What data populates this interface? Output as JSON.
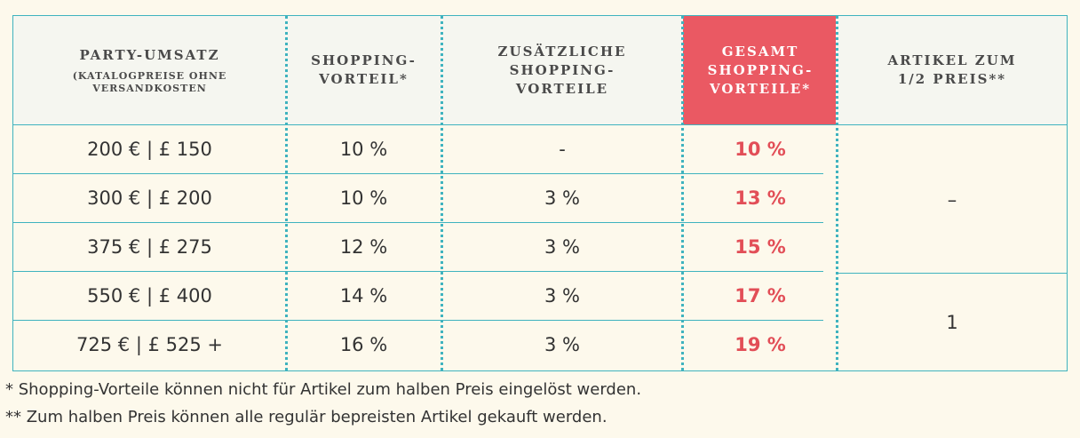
{
  "headers": {
    "col1_title": "PARTY-UMSATZ",
    "col1_sub_line1": "(KATALOGPREISE OHNE",
    "col1_sub_line2": "VERSANDKOSTEN",
    "col2_line1": "SHOPPING-",
    "col2_line2": "VORTEIL*",
    "col3_line1": "ZUSÄTZLICHE",
    "col3_line2": "SHOPPING-",
    "col3_line3": "VORTEILE",
    "col4_line1": "GESAMT",
    "col4_line2": "SHOPPING-",
    "col4_line3": "VORTEILE*",
    "col5_line1": "ARTIKEL ZUM",
    "col5_line2": "1/2 PREIS**"
  },
  "rows": [
    {
      "umsatz": "200 € | £ 150",
      "vorteil": "10 %",
      "zusaetzlich": "-",
      "gesamt": "10 %"
    },
    {
      "umsatz": "300 € | £ 200",
      "vorteil": "10 %",
      "zusaetzlich": "3 %",
      "gesamt": "13 %"
    },
    {
      "umsatz": "375 € | £ 275",
      "vorteil": "12 %",
      "zusaetzlich": "3 %",
      "gesamt": "15 %"
    },
    {
      "umsatz": "550 € | £ 400",
      "vorteil": "14 %",
      "zusaetzlich": "3 %",
      "gesamt": "17 %"
    },
    {
      "umsatz": "725 € | £ 525 +",
      "vorteil": "16 %",
      "zusaetzlich": "3 %",
      "gesamt": "19 %"
    }
  ],
  "half_price": {
    "group1": "–",
    "group2": "1"
  },
  "footnotes": {
    "note1": "* Shopping-Vorteile können nicht für Artikel zum halben Preis eingelöst werden.",
    "note2": "** Zum halben Preis können alle regulär bepreisten Artikel gekauft werden."
  },
  "colors": {
    "accent_teal": "#3fb3bf",
    "accent_red": "#ea5963",
    "background": "#fdf9ec"
  }
}
